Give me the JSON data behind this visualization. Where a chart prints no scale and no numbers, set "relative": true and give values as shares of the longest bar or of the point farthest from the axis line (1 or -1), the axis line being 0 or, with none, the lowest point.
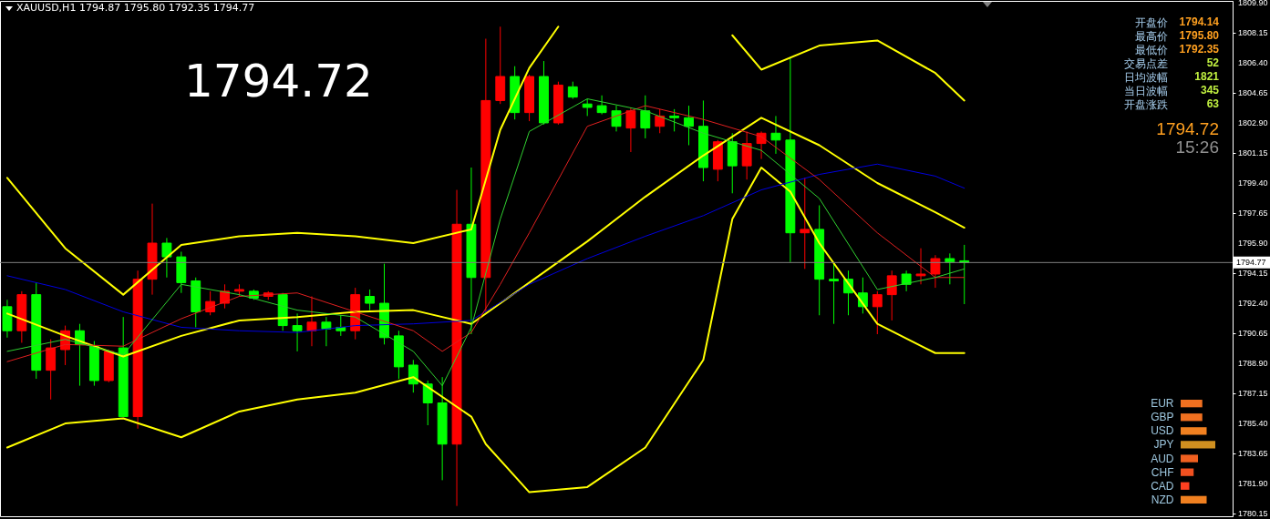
{
  "chart_data": [
    {
      "type": "candlestick",
      "title": "XAUUSD,H1  1794.87 1795.80 1792.35 1794.77",
      "categories": [
        null,
        null,
        null,
        null,
        null,
        null,
        null,
        null,
        null,
        null,
        null,
        null,
        null,
        null,
        null,
        null,
        null,
        null,
        null,
        null,
        null,
        null,
        null,
        null,
        null,
        null,
        null,
        null,
        null,
        null,
        null,
        null,
        null,
        null,
        null,
        null,
        null,
        null,
        null,
        null,
        null,
        null,
        null,
        null,
        null,
        null,
        null,
        null,
        null,
        null,
        null,
        null,
        null,
        null,
        null,
        null,
        null,
        null,
        null,
        null,
        null,
        null,
        null,
        null,
        null,
        null,
        null,
        null,
        null,
        null,
        null,
        null,
        null,
        null,
        null,
        null,
        null,
        null,
        null,
        null,
        null,
        null,
        null,
        null,
        null
      ],
      "ohlc": [
        [
          1792.2,
          1792.6,
          1790.4,
          1790.8
        ],
        [
          1790.8,
          1793.1,
          1790.1,
          1792.9
        ],
        [
          1792.9,
          1793.6,
          1788.0,
          1788.5
        ],
        [
          1788.5,
          1790.3,
          1786.8,
          1789.8
        ],
        [
          1789.7,
          1791.1,
          1788.8,
          1790.8
        ],
        [
          1790.8,
          1791.2,
          1787.6,
          1790.0
        ],
        [
          1789.9,
          1790.2,
          1787.6,
          1787.9
        ],
        [
          1787.9,
          1789.7,
          1787.8,
          1789.6
        ],
        [
          1789.8,
          1791.6,
          1785.8,
          1785.8
        ],
        [
          1785.8,
          1794.3,
          1785.1,
          1793.8
        ],
        [
          1793.8,
          1798.2,
          1792.9,
          1795.9
        ],
        [
          1795.9,
          1796.2,
          1793.9,
          1795.1
        ],
        [
          1795.1,
          1795.4,
          1793.0,
          1793.6
        ],
        [
          1793.7,
          1793.9,
          1791.0,
          1791.9
        ],
        [
          1791.9,
          1793.1,
          1791.7,
          1792.5
        ],
        [
          1792.4,
          1793.5,
          1792.1,
          1793.1
        ],
        [
          1793.1,
          1793.5,
          1792.8,
          1793.2
        ],
        [
          1793.1,
          1793.2,
          1792.6,
          1792.7
        ],
        [
          1792.8,
          1793.1,
          1792.6,
          1793.0
        ],
        [
          1792.9,
          1793.0,
          1790.8,
          1791.1
        ],
        [
          1791.1,
          1791.8,
          1789.6,
          1790.8
        ],
        [
          1790.8,
          1792.8,
          1789.9,
          1791.3
        ],
        [
          1791.3,
          1791.6,
          1789.9,
          1790.9
        ],
        [
          1791.0,
          1791.7,
          1790.5,
          1790.8
        ],
        [
          1790.8,
          1793.3,
          1790.3,
          1792.9
        ],
        [
          1792.8,
          1793.2,
          1792.0,
          1792.4
        ],
        [
          1792.4,
          1794.7,
          1790.0,
          1790.4
        ],
        [
          1790.5,
          1790.8,
          1788.0,
          1788.7
        ],
        [
          1788.8,
          1789.1,
          1787.2,
          1787.7
        ],
        [
          1787.7,
          1787.9,
          1785.3,
          1786.6
        ],
        [
          1786.6,
          1788.1,
          1782.1,
          1784.2
        ],
        [
          1784.2,
          1799.0,
          1780.6,
          1797.0
        ],
        [
          1797.0,
          1800.3,
          1790.6,
          1793.9
        ],
        [
          1793.9,
          1807.8,
          1791.9,
          1804.2
        ],
        [
          1804.2,
          1808.5,
          1804.0,
          1805.6
        ],
        [
          1805.6,
          1806.2,
          1803.1,
          1803.5
        ],
        [
          1803.5,
          1805.7,
          1803.0,
          1805.6
        ],
        [
          1805.6,
          1806.5,
          1802.8,
          1802.9
        ],
        [
          1802.9,
          1805.3,
          1802.8,
          1805.1
        ],
        [
          1805.0,
          1805.3,
          1804.3,
          1804.4
        ],
        [
          1804.0,
          1804.3,
          1803.3,
          1803.8
        ],
        [
          1803.9,
          1804.5,
          1803.4,
          1803.5
        ],
        [
          1803.6,
          1803.9,
          1802.4,
          1802.7
        ],
        [
          1802.6,
          1803.8,
          1801.2,
          1803.6
        ],
        [
          1803.6,
          1804.5,
          1802.0,
          1802.6
        ],
        [
          1802.7,
          1803.7,
          1802.3,
          1803.3
        ],
        [
          1803.3,
          1803.7,
          1802.4,
          1803.2
        ],
        [
          1803.2,
          1803.9,
          1801.6,
          1802.7
        ],
        [
          1802.7,
          1804.2,
          1799.5,
          1800.3
        ],
        [
          1800.2,
          1801.9,
          1799.5,
          1801.8
        ],
        [
          1801.8,
          1802.3,
          1798.8,
          1800.4
        ],
        [
          1800.4,
          1802.4,
          1799.6,
          1801.7
        ],
        [
          1801.7,
          1802.4,
          1800.8,
          1802.3
        ],
        [
          1802.3,
          1803.3,
          1801.1,
          1801.9
        ],
        [
          1801.9,
          1806.7,
          1794.8,
          1796.5
        ],
        [
          1796.5,
          1799.7,
          1794.4,
          1796.7
        ],
        [
          1796.7,
          1798.1,
          1791.7,
          1793.8
        ],
        [
          1793.8,
          1794.8,
          1791.2,
          1793.7
        ],
        [
          1793.8,
          1794.3,
          1791.7,
          1793.0
        ],
        [
          1793.0,
          1793.9,
          1791.8,
          1792.2
        ],
        [
          1792.2,
          1793.1,
          1790.6,
          1792.9
        ],
        [
          1792.9,
          1794.3,
          1791.4,
          1794.0
        ],
        [
          1794.1,
          1794.3,
          1793.1,
          1793.5
        ],
        [
          1794.0,
          1795.6,
          1793.5,
          1794.1
        ],
        [
          1794.1,
          1795.2,
          1793.3,
          1795.0
        ],
        [
          1795.0,
          1795.3,
          1793.5,
          1794.8
        ],
        [
          1794.87,
          1795.8,
          1792.35,
          1794.77
        ],
        null,
        null,
        null,
        null,
        null,
        null,
        null,
        null,
        null,
        null,
        null,
        null,
        null,
        null,
        null,
        null,
        null,
        null
      ],
      "colors": [
        "#00ff00",
        "#ff0000",
        "#00ff00",
        "#ff0000",
        "#ff0000",
        "#00ff00",
        "#00ff00",
        "#ff0000",
        "#00ff00",
        "#ff0000",
        "#ff0000",
        "#00ff00",
        "#00ff00",
        "#00ff00",
        "#ff0000",
        "#ff0000",
        "#ff0000",
        "#00ff00",
        "#ff0000",
        "#00ff00",
        "#00ff00",
        "#ff0000",
        "#00ff00",
        "#00ff00",
        "#ff0000",
        "#00ff00",
        "#00ff00",
        "#00ff00",
        "#00ff00",
        "#00ff00",
        "#00ff00",
        "#ff0000",
        "#00ff00",
        "#ff0000",
        "#ff0000",
        "#00ff00",
        "#ff0000",
        "#00ff00",
        "#ff0000",
        "#00ff00",
        "#00ff00",
        "#00ff00",
        "#00ff00",
        "#ff0000",
        "#00ff00",
        "#ff0000",
        "#00ff00",
        "#00ff00",
        "#00ff00",
        "#ff0000",
        "#00ff00",
        "#ff0000",
        "#ff0000",
        "#00ff00",
        "#00ff00",
        "#ff0000",
        "#00ff00",
        "#00ff00",
        "#00ff00",
        "#00ff00",
        "#ff0000",
        "#ff0000",
        "#00ff00",
        "#ff0000",
        "#ff0000",
        "#00ff00",
        "#00ff00",
        null,
        null,
        null,
        null,
        null,
        null,
        null,
        null,
        null,
        null,
        null,
        null,
        null,
        null,
        null,
        null,
        null,
        null
      ],
      "series": [
        {
          "type": "line",
          "color": "#ffff00",
          "values": [
            1799.7,
            null,
            null,
            null,
            1795.6,
            null,
            null,
            null,
            1792.9,
            null,
            null,
            null,
            1795.8,
            null,
            null,
            null,
            1796.3,
            null,
            null,
            null,
            1796.5,
            null,
            null,
            null,
            1796.3,
            null,
            null,
            null,
            1795.9,
            null,
            null,
            null,
            1796.7,
            1799.6,
            1802.5,
            null,
            1806.1,
            null,
            1808.5,
            null,
            null,
            null,
            null,
            null,
            null,
            null,
            null,
            null,
            null,
            null,
            null,
            null,
            null,
            null,
            null,
            null,
            null,
            null,
            null,
            null,
            null,
            null,
            null,
            null,
            null,
            null,
            null,
            null,
            null,
            null,
            null,
            null,
            null,
            null,
            null,
            null,
            null,
            null,
            null,
            null,
            null,
            null,
            null,
            null,
            null
          ]
        },
        {
          "type": "line",
          "color": "#ffff00",
          "values": [
            null,
            null,
            null,
            null,
            null,
            null,
            null,
            null,
            null,
            null,
            null,
            null,
            null,
            null,
            null,
            null,
            null,
            null,
            null,
            null,
            null,
            null,
            null,
            null,
            null,
            null,
            null,
            null,
            null,
            null,
            null,
            null,
            null,
            null,
            null,
            null,
            null,
            null,
            null,
            null,
            null,
            null,
            null,
            null,
            null,
            null,
            null,
            null,
            null,
            null,
            1808.0,
            null,
            1806.0,
            null,
            null,
            null,
            1807.4,
            null,
            null,
            null,
            1807.7,
            null,
            null,
            null,
            1805.8,
            null,
            1804.2,
            null,
            null,
            null,
            null,
            null,
            null,
            null,
            null,
            null,
            null,
            null,
            null,
            null,
            null,
            null,
            null,
            null,
            null
          ]
        },
        {
          "type": "line",
          "color": "#ffff00",
          "values": [
            1791.8,
            null,
            null,
            null,
            1790.5,
            null,
            null,
            null,
            1789.3,
            null,
            null,
            null,
            1790.5,
            null,
            null,
            null,
            1791.4,
            null,
            null,
            null,
            1791.6,
            null,
            null,
            null,
            1791.9,
            null,
            null,
            null,
            1792.0,
            null,
            null,
            null,
            1791.2,
            null,
            null,
            null,
            1793.6,
            null,
            null,
            null,
            1796.0,
            null,
            null,
            null,
            1798.6,
            null,
            null,
            null,
            1801.0,
            null,
            null,
            null,
            1803.2,
            null,
            null,
            null,
            1801.6,
            null,
            null,
            null,
            1799.4,
            null,
            null,
            null,
            1797.7,
            null,
            1796.8,
            null,
            null,
            null,
            null,
            null,
            null,
            null,
            null,
            null,
            null,
            null,
            null,
            null,
            null,
            null,
            null,
            null,
            null
          ]
        },
        {
          "type": "line",
          "color": "#ffff00",
          "values": [
            1784.0,
            null,
            null,
            null,
            1785.4,
            null,
            null,
            null,
            1785.7,
            null,
            null,
            null,
            1784.6,
            null,
            null,
            null,
            1786.1,
            null,
            null,
            null,
            1786.8,
            null,
            null,
            null,
            1787.2,
            null,
            null,
            null,
            1788.1,
            null,
            null,
            null,
            1785.8,
            1784.2,
            null,
            null,
            1781.4,
            null,
            null,
            null,
            1781.7,
            null,
            null,
            null,
            1784.0,
            null,
            null,
            null,
            1789.1,
            null,
            1797.3,
            null,
            1800.3,
            null,
            1798.9,
            null,
            1795.9,
            null,
            null,
            null,
            1791.2,
            null,
            null,
            null,
            1789.5,
            null,
            1789.5,
            null,
            null,
            null,
            null,
            null,
            null,
            null,
            null,
            null,
            null,
            null,
            null,
            null,
            null,
            null,
            null,
            null,
            null
          ]
        },
        {
          "type": "line",
          "color": "#0000e0",
          "values": [
            1794.0,
            null,
            null,
            null,
            1793.2,
            null,
            null,
            null,
            1791.9,
            null,
            null,
            null,
            1791.0,
            null,
            null,
            null,
            1790.8,
            null,
            null,
            null,
            1790.7,
            null,
            null,
            null,
            1791.1,
            null,
            null,
            null,
            1791.2,
            null,
            null,
            null,
            1791.4,
            null,
            null,
            null,
            1793.5,
            null,
            null,
            null,
            1795.0,
            null,
            null,
            null,
            1796.3,
            null,
            null,
            null,
            1797.5,
            null,
            null,
            null,
            1799.0,
            null,
            null,
            null,
            1799.9,
            null,
            null,
            null,
            1800.5,
            null,
            null,
            null,
            1799.8,
            null,
            1799.1,
            null,
            null,
            null,
            null,
            null,
            null,
            null,
            null,
            null,
            null,
            null,
            null,
            null,
            null,
            null,
            null,
            null,
            null
          ]
        },
        {
          "type": "line",
          "color": "#e02020",
          "values": [
            1789.0,
            null,
            null,
            null,
            1790.0,
            null,
            null,
            null,
            1789.9,
            null,
            null,
            null,
            1791.5,
            null,
            null,
            null,
            1792.8,
            null,
            null,
            null,
            1793.0,
            null,
            null,
            null,
            1791.9,
            null,
            null,
            null,
            1790.8,
            null,
            1789.6,
            null,
            1790.7,
            null,
            1793.5,
            null,
            1796.5,
            null,
            null,
            null,
            1802.7,
            null,
            null,
            null,
            1803.9,
            null,
            null,
            null,
            1803.1,
            null,
            null,
            null,
            1802.1,
            null,
            null,
            null,
            1799.6,
            null,
            null,
            null,
            1796.5,
            null,
            null,
            null,
            1793.9,
            null,
            1793.9,
            null,
            null,
            null,
            null,
            null,
            null,
            null,
            null,
            null,
            null,
            null,
            null,
            null,
            null,
            null,
            null,
            null,
            null
          ]
        },
        {
          "type": "line",
          "color": "#30d030",
          "values": [
            1789.6,
            null,
            null,
            null,
            1790.3,
            null,
            null,
            null,
            1789.4,
            null,
            null,
            null,
            1793.5,
            null,
            null,
            null,
            1792.9,
            null,
            null,
            null,
            1792.0,
            null,
            null,
            null,
            1791.6,
            null,
            null,
            null,
            1789.6,
            null,
            1787.6,
            null,
            1791.0,
            null,
            1797.3,
            null,
            1802.4,
            null,
            null,
            null,
            1804.3,
            null,
            null,
            null,
            1803.6,
            null,
            null,
            null,
            1802.3,
            null,
            null,
            null,
            1801.3,
            null,
            null,
            null,
            1798.5,
            null,
            null,
            null,
            1793.2,
            null,
            null,
            null,
            1793.9,
            null,
            1794.4,
            null,
            null,
            null,
            null,
            null,
            null,
            null,
            null,
            null,
            null,
            null,
            null,
            null,
            null,
            null,
            null,
            null,
            null
          ]
        }
      ],
      "ylim": [
        1780.0,
        1810.0
      ],
      "yticks": [
        1780.15,
        {
          "value": 1781.9,
          "label": "1781.90"
        },
        1783.65,
        {
          "value": 1785.4,
          "label": "1785.40"
        },
        1787.15,
        {
          "value": 1788.9,
          "label": "1788.90"
        },
        1790.65,
        {
          "value": 1792.4,
          "label": "1792.40"
        },
        1794.15,
        {
          "value": 1795.9,
          "label": "1795.90"
        },
        1797.65,
        {
          "value": 1799.4,
          "label": "1799.40"
        },
        1801.15,
        {
          "value": 1802.9,
          "label": "1802.90"
        },
        1804.65,
        {
          "value": 1806.4,
          "label": "1806.40"
        },
        1808.15,
        {
          "value": 1809.9,
          "label": "1809.90"
        }
      ],
      "tick_labels": "y",
      "ref_lines": [
        {
          "axis": "y",
          "value": 1794.77,
          "label": "1794.77",
          "color": "#808080"
        }
      ],
      "annotations": [
        "1794.72",
        "开盘价",
        "1794.14",
        "最高价",
        "1795.80",
        "最低价",
        "1792.35",
        "交易点差",
        "52",
        "日均波幅",
        "1821",
        "当日波幅",
        "345",
        "开盘涨跌",
        "63",
        "1794.72",
        "15:26"
      ]
    },
    {
      "type": "bar",
      "orientation": "horizontal",
      "relative": true,
      "categories": [
        "EUR",
        "GBP",
        "USD",
        "JPY",
        "AUD",
        "CHF",
        "CAD",
        "NZD"
      ],
      "values": [
        0.625,
        0.625,
        0.75,
        1,
        0.5,
        0.375,
        0.25,
        0.75
      ],
      "colors": [
        "#f07020",
        "#f07020",
        "#f08020",
        "#d09020",
        "#f06020",
        "#f05020",
        "#ff4020",
        "#f08020"
      ],
      "tick_labels": "y"
    }
  ]
}
